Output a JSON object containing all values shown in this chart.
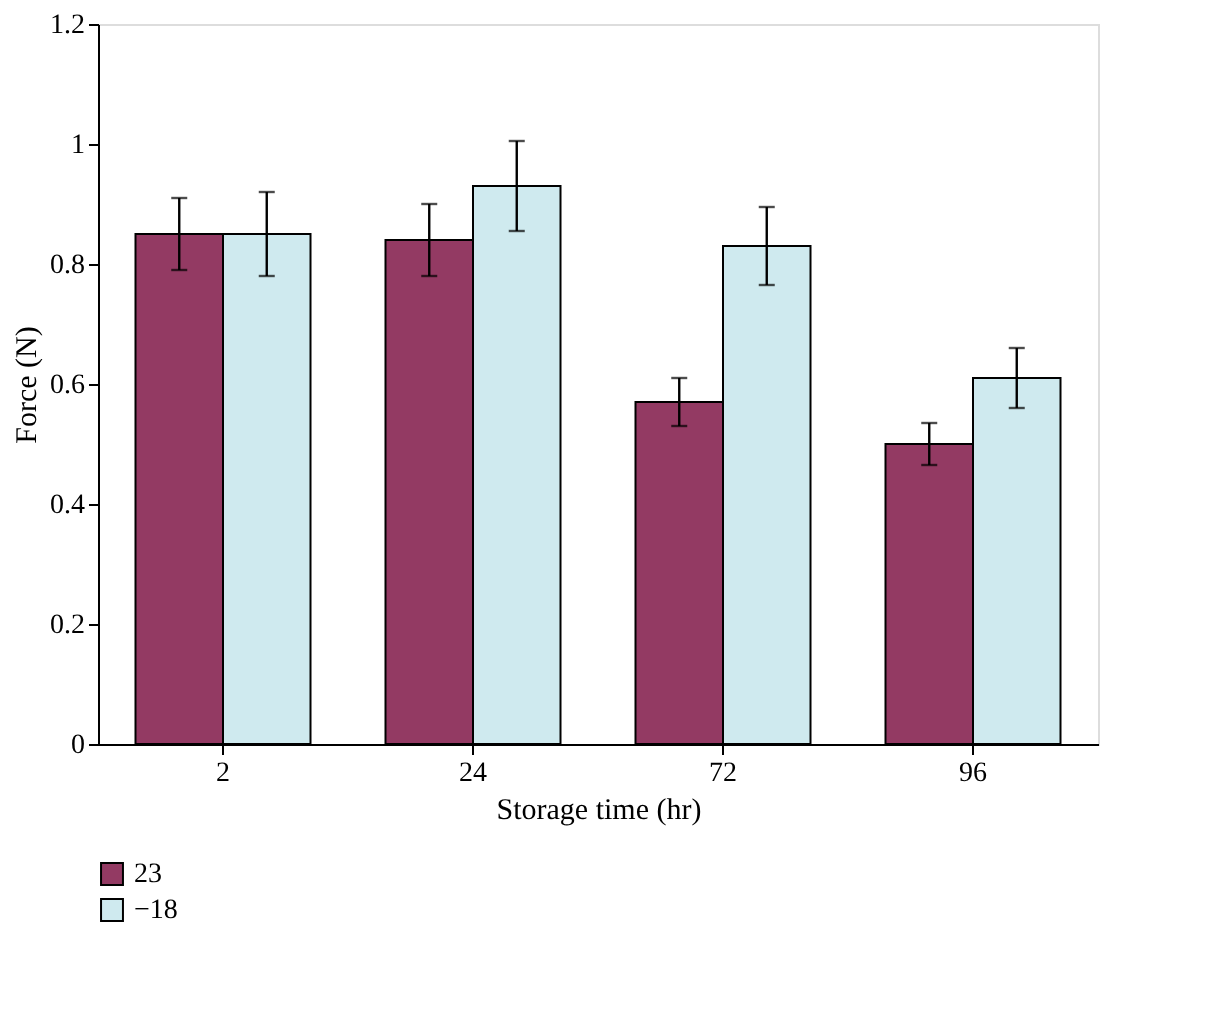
{
  "chart_data": {
    "type": "bar",
    "xlabel": "Storage time (hr)",
    "ylabel": "Force (N)",
    "categories": [
      "2",
      "24",
      "72",
      "96"
    ],
    "series": [
      {
        "name": "23",
        "color": "#933a63",
        "values": [
          0.85,
          0.84,
          0.57,
          0.5
        ],
        "errors": [
          0.06,
          0.06,
          0.04,
          0.035
        ]
      },
      {
        "name": "−18",
        "color": "#cfeaef",
        "values": [
          0.85,
          0.93,
          0.83,
          0.61
        ],
        "errors": [
          0.07,
          0.075,
          0.065,
          0.05
        ]
      }
    ],
    "ylim": [
      0,
      1.2
    ],
    "yticks": [
      0,
      0.2,
      0.4,
      0.6,
      0.8,
      1,
      1.2
    ],
    "grid": false,
    "legend": "bottom"
  }
}
